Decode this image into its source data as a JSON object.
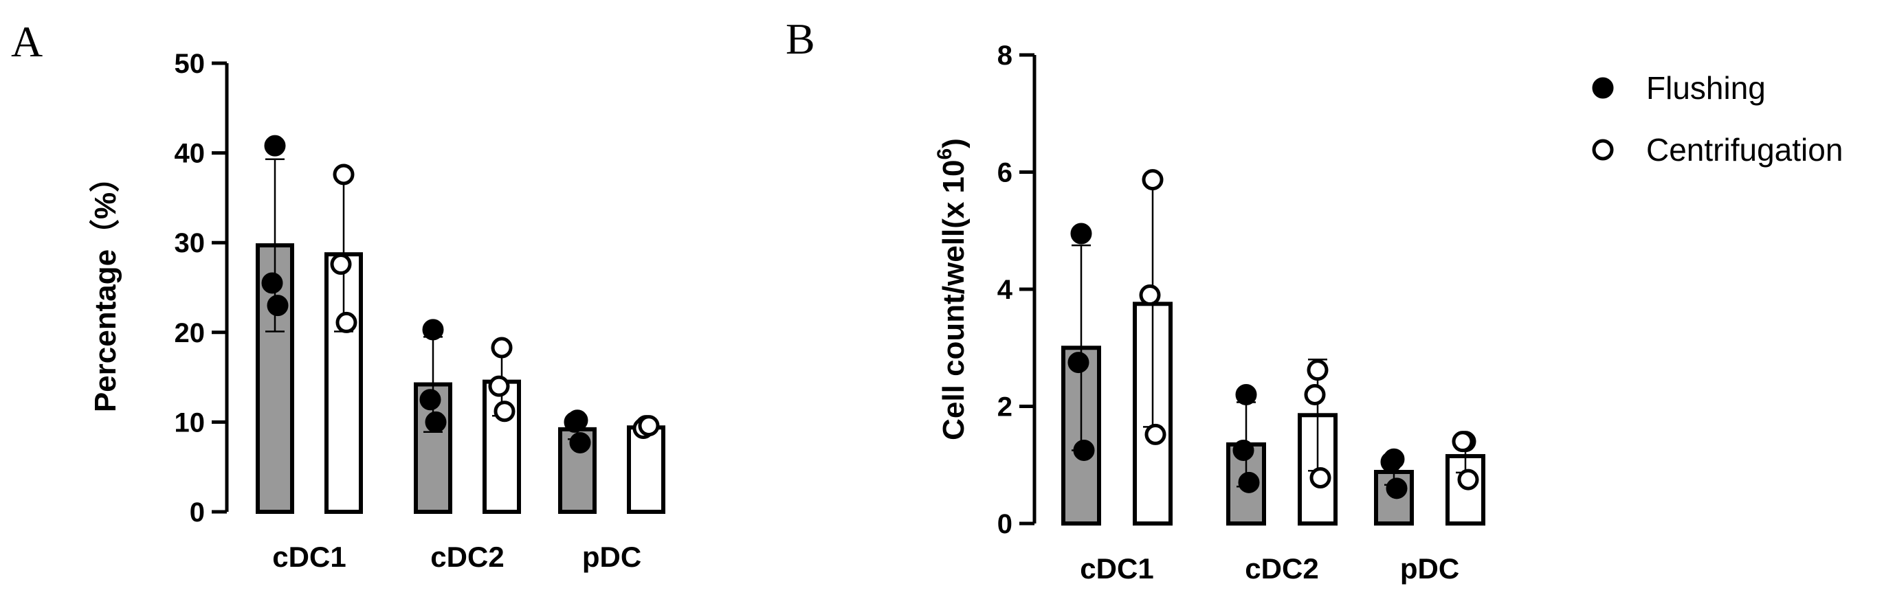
{
  "chart_data": [
    {
      "type": "bar",
      "panel_label": "A",
      "categories": [
        "cDC1",
        "cDC2",
        "pDC"
      ],
      "ylabel": "Percentage（%）",
      "ylim": [
        0,
        50
      ],
      "yticks": [
        0,
        10,
        20,
        30,
        40,
        50
      ],
      "series": [
        {
          "name": "Flushing",
          "fill": "#999999",
          "marker": "filled-circle",
          "values": [
            29.7,
            14.2,
            9.2
          ],
          "sd": [
            9.6,
            5.3,
            1.1
          ],
          "points": [
            [
              40.8,
              25.5,
              23.0
            ],
            [
              20.3,
              12.5,
              10.0
            ],
            [
              10.2,
              10.0,
              7.7
            ]
          ]
        },
        {
          "name": "Centrifugation",
          "fill": "#ffffff",
          "marker": "open-circle",
          "values": [
            28.7,
            14.5,
            9.4
          ],
          "sd": [
            8.6,
            3.8,
            0.5
          ],
          "points": [
            [
              37.6,
              27.6,
              21.1
            ],
            [
              18.3,
              14.0,
              11.2
            ],
            [
              9.6,
              9.3,
              9.6
            ]
          ]
        }
      ]
    },
    {
      "type": "bar",
      "panel_label": "B",
      "categories": [
        "cDC1",
        "cDC2",
        "pDC"
      ],
      "ylabel": "Cell count/well(x 10",
      "ylabel_superscript": "6",
      "ylabel_suffix": ")",
      "ylim": [
        0,
        8
      ],
      "yticks": [
        0,
        2,
        4,
        6,
        8
      ],
      "legend_position": "top-right",
      "series": [
        {
          "name": "Flushing",
          "fill": "#999999",
          "marker": "filled-circle",
          "values": [
            3.0,
            1.35,
            0.88
          ],
          "sd": [
            1.75,
            0.72,
            0.22
          ],
          "points": [
            [
              4.95,
              2.75,
              1.25
            ],
            [
              2.2,
              1.25,
              0.7
            ],
            [
              1.1,
              1.05,
              0.6
            ]
          ]
        },
        {
          "name": "Centrifugation",
          "fill": "#ffffff",
          "marker": "open-circle",
          "values": [
            3.75,
            1.85,
            1.15
          ],
          "sd": [
            2.1,
            0.95,
            0.28
          ],
          "points": [
            [
              5.87,
              3.9,
              1.52
            ],
            [
              2.62,
              2.2,
              0.78
            ],
            [
              1.4,
              1.4,
              0.75
            ]
          ]
        }
      ]
    }
  ]
}
